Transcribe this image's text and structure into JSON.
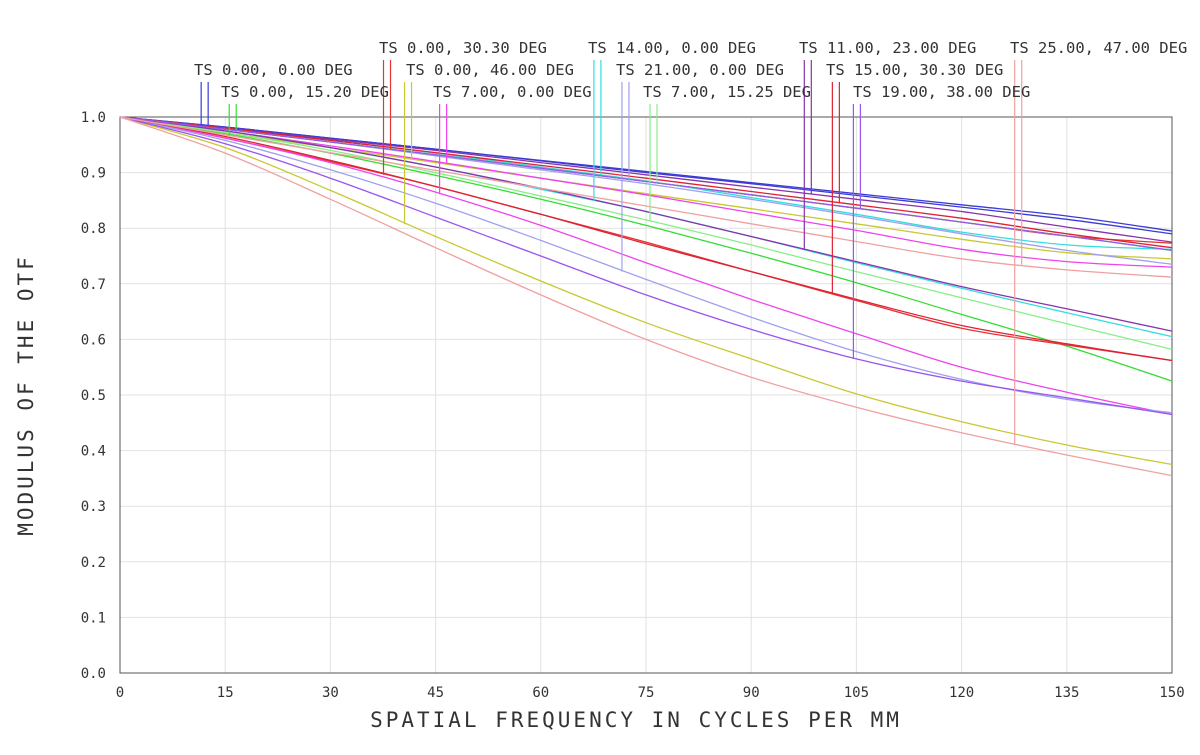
{
  "chart_data": {
    "type": "line",
    "title": "",
    "xlabel": "SPATIAL FREQUENCY IN CYCLES PER MM",
    "ylabel": "MODULUS OF THE OTF",
    "xlim": [
      0,
      150
    ],
    "ylim": [
      0.0,
      1.0
    ],
    "x_ticks": [
      0,
      15,
      30,
      45,
      60,
      75,
      90,
      105,
      120,
      135,
      150
    ],
    "y_ticks": [
      0.0,
      0.1,
      0.2,
      0.3,
      0.4,
      0.5,
      0.6,
      0.7,
      0.8,
      0.9,
      1.0
    ],
    "x_tick_labels": [
      "0",
      "15",
      "30",
      "45",
      "60",
      "75",
      "90",
      "105",
      "120",
      "135",
      "150"
    ],
    "y_tick_labels": [
      "0.0",
      "0.1",
      "0.2",
      "0.3",
      "0.4",
      "0.5",
      "0.6",
      "0.7",
      "0.8",
      "0.9",
      "1.0"
    ],
    "grid": true,
    "x": [
      0,
      15,
      30,
      45,
      60,
      75,
      90,
      105,
      120,
      135,
      150
    ],
    "series": [
      {
        "name": "TS 0.00, 0.00 DEG",
        "color": "#3b3bd6",
        "marker_x": 12,
        "tangential": [
          1.0,
          0.982,
          0.962,
          0.942,
          0.922,
          0.902,
          0.882,
          0.862,
          0.842,
          0.822,
          0.795
        ],
        "sagittal": [
          1.0,
          0.982,
          0.962,
          0.942,
          0.921,
          0.9,
          0.88,
          0.859,
          0.838,
          0.816,
          0.79
        ]
      },
      {
        "name": "TS 0.00, 15.20 DEG",
        "color": "#33dd33",
        "marker_x": 16,
        "tangential": [
          1.0,
          0.978,
          0.955,
          0.932,
          0.908,
          0.884,
          0.86,
          0.836,
          0.811,
          0.786,
          0.76
        ],
        "sagittal": [
          1.0,
          0.97,
          0.935,
          0.895,
          0.852,
          0.805,
          0.755,
          0.702,
          0.645,
          0.588,
          0.525
        ]
      },
      {
        "name": "TS 0.00, 30.30 DEG",
        "color": "#e63333",
        "marker_x": 38,
        "tangential": [
          1.0,
          0.978,
          0.955,
          0.932,
          0.908,
          0.884,
          0.86,
          0.836,
          0.811,
          0.786,
          0.773
        ],
        "sagittal": [
          1.0,
          0.962,
          0.92,
          0.875,
          0.825,
          0.775,
          0.722,
          0.67,
          0.62,
          0.59,
          0.562
        ]
      },
      {
        "name": "TS 0.00, 46.00 DEG",
        "color": "#c8c832",
        "marker_x": 41,
        "tangential": [
          1.0,
          0.972,
          0.945,
          0.918,
          0.89,
          0.862,
          0.835,
          0.808,
          0.78,
          0.756,
          0.745
        ],
        "sagittal": [
          1.0,
          0.945,
          0.868,
          0.785,
          0.705,
          0.63,
          0.565,
          0.502,
          0.452,
          0.41,
          0.375
        ]
      },
      {
        "name": "TS 7.00, 0.00 DEG",
        "color": "#ee44ee",
        "marker_x": 46,
        "tangential": [
          1.0,
          0.975,
          0.948,
          0.92,
          0.89,
          0.86,
          0.828,
          0.796,
          0.762,
          0.74,
          0.73
        ],
        "sagittal": [
          1.0,
          0.962,
          0.918,
          0.865,
          0.805,
          0.738,
          0.672,
          0.61,
          0.55,
          0.505,
          0.465
        ]
      },
      {
        "name": "TS 14.00, 0.00 DEG",
        "color": "#33dddd",
        "marker_x": 68,
        "tangential": [
          1.0,
          0.98,
          0.958,
          0.935,
          0.91,
          0.885,
          0.855,
          0.825,
          0.793,
          0.77,
          0.762
        ],
        "sagittal": [
          1.0,
          0.975,
          0.945,
          0.91,
          0.87,
          0.83,
          0.785,
          0.738,
          0.692,
          0.648,
          0.605
        ]
      },
      {
        "name": "TS 21.00, 0.00 DEG",
        "color": "#a0a0ee",
        "marker_x": 72,
        "tangential": [
          1.0,
          0.978,
          0.955,
          0.93,
          0.905,
          0.88,
          0.852,
          0.822,
          0.79,
          0.76,
          0.735
        ],
        "sagittal": [
          1.0,
          0.958,
          0.905,
          0.845,
          0.778,
          0.708,
          0.64,
          0.578,
          0.528,
          0.492,
          0.468
        ]
      },
      {
        "name": "TS 7.00, 15.25 DEG",
        "color": "#88ee88",
        "marker_x": 76,
        "tangential": [
          1.0,
          0.978,
          0.955,
          0.932,
          0.908,
          0.884,
          0.86,
          0.836,
          0.811,
          0.786,
          0.76
        ],
        "sagittal": [
          1.0,
          0.972,
          0.94,
          0.9,
          0.858,
          0.815,
          0.77,
          0.722,
          0.675,
          0.628,
          0.582
        ]
      },
      {
        "name": "TS 11.00, 23.00 DEG",
        "color": "#8833aa",
        "marker_x": 98,
        "tangential": [
          1.0,
          0.98,
          0.96,
          0.94,
          0.918,
          0.896,
          0.874,
          0.852,
          0.83,
          0.802,
          0.775
        ],
        "sagittal": [
          1.0,
          0.975,
          0.945,
          0.91,
          0.872,
          0.83,
          0.785,
          0.74,
          0.695,
          0.655,
          0.615
        ]
      },
      {
        "name": "TS 15.00, 30.30 DEG",
        "color": "#dd2233",
        "marker_x": 102,
        "tangential": [
          1.0,
          0.98,
          0.958,
          0.936,
          0.913,
          0.89,
          0.866,
          0.842,
          0.818,
          0.79,
          0.765
        ],
        "sagittal": [
          1.0,
          0.965,
          0.922,
          0.875,
          0.825,
          0.772,
          0.722,
          0.672,
          0.625,
          0.592,
          0.562
        ]
      },
      {
        "name": "TS 19.00, 38.00 DEG",
        "color": "#9955ee",
        "marker_x": 105,
        "tangential": [
          1.0,
          0.978,
          0.955,
          0.932,
          0.908,
          0.884,
          0.86,
          0.836,
          0.811,
          0.786,
          0.76
        ],
        "sagittal": [
          1.0,
          0.952,
          0.89,
          0.82,
          0.75,
          0.68,
          0.618,
          0.565,
          0.525,
          0.495,
          0.465
        ]
      },
      {
        "name": "TS 25.00, 47.00 DEG",
        "color": "#f0a0a0",
        "marker_x": 128,
        "tangential": [
          1.0,
          0.968,
          0.936,
          0.904,
          0.872,
          0.84,
          0.808,
          0.776,
          0.745,
          0.725,
          0.712
        ],
        "sagittal": [
          1.0,
          0.935,
          0.852,
          0.765,
          0.68,
          0.6,
          0.532,
          0.478,
          0.432,
          0.392,
          0.355
        ]
      }
    ]
  }
}
